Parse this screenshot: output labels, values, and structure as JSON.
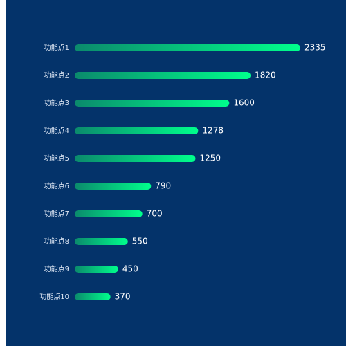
{
  "chart_data": {
    "type": "bar",
    "orientation": "horizontal",
    "categories": [
      "功能点1",
      "功能点2",
      "功能点3",
      "功能点4",
      "功能点5",
      "功能点6",
      "功能点7",
      "功能点8",
      "功能点9",
      "功能点10"
    ],
    "values": [
      2335,
      1820,
      1600,
      1278,
      1250,
      790,
      700,
      550,
      450,
      370
    ],
    "color": [
      "#0b8a6c",
      "#00ff8c"
    ]
  }
}
